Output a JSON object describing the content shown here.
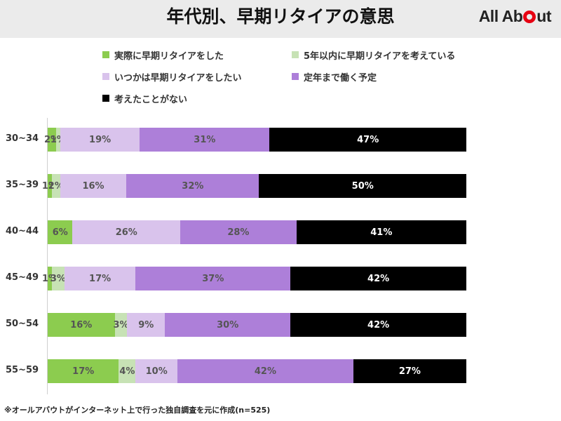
{
  "header": {
    "title": "年代別、早期リタイアの意思",
    "logo_left": "All Ab",
    "logo_right": "ut"
  },
  "footnote": "※オールアバウトがインターネット上で行った独自調査を元に作成(n=525)",
  "chart_data": {
    "type": "bar",
    "orientation": "horizontal",
    "stacked": true,
    "percent_scale": true,
    "title": "年代別、早期リタイアの意思",
    "xlabel": "",
    "ylabel": "",
    "xlim": [
      0,
      100
    ],
    "grid": false,
    "legend_position": "top",
    "categories": [
      "30~34",
      "35~39",
      "40~44",
      "45~49",
      "50~54",
      "55~59"
    ],
    "series": [
      {
        "name": "実際に早期リタイアをした",
        "color": "#8ccc4f",
        "values": [
          2,
          1,
          6,
          1,
          16,
          17
        ]
      },
      {
        "name": "5年以内に早期リタイアを考えている",
        "color": "#c7e2b5",
        "values": [
          1,
          2,
          0,
          3,
          3,
          4
        ]
      },
      {
        "name": "いつかは早期リタイアをしたい",
        "color": "#d9c3ec",
        "values": [
          19,
          16,
          26,
          17,
          9,
          10
        ]
      },
      {
        "name": "定年まで働く予定",
        "color": "#ad7fd9",
        "values": [
          31,
          32,
          28,
          37,
          30,
          42
        ]
      },
      {
        "name": "考えたことがない",
        "color": "#000000",
        "values": [
          47,
          50,
          41,
          42,
          42,
          27
        ]
      }
    ]
  }
}
